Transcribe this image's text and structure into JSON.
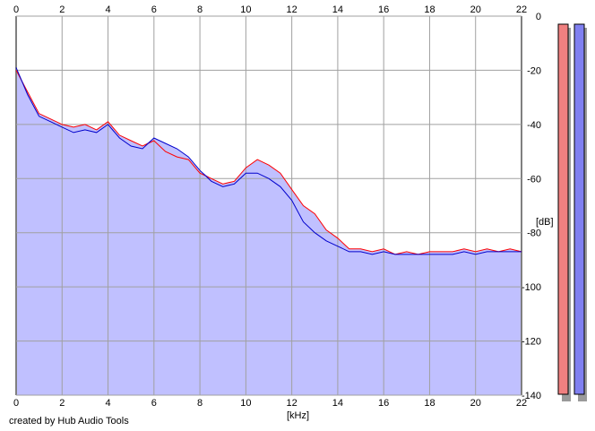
{
  "app": {
    "credit": "created by Hub Audio Tools"
  },
  "chart_data": {
    "type": "area",
    "xlabel": "[kHz]",
    "ylabel": "[dB]",
    "xlim": [
      0,
      22
    ],
    "ylim": [
      -140,
      0
    ],
    "grid": true,
    "x_ticks": [
      0,
      2,
      4,
      6,
      8,
      10,
      12,
      14,
      16,
      18,
      20,
      22
    ],
    "y_ticks": [
      0,
      -20,
      -40,
      -60,
      -80,
      -100,
      -120,
      -140
    ],
    "x": [
      0,
      0.5,
      1,
      1.5,
      2,
      2.5,
      3,
      3.5,
      4,
      4.5,
      5,
      5.5,
      6,
      6.5,
      7,
      7.5,
      8,
      8.5,
      9,
      9.5,
      10,
      10.5,
      11,
      11.5,
      12,
      12.5,
      13,
      13.5,
      14,
      14.5,
      15,
      15.5,
      16,
      16.5,
      17,
      17.5,
      18,
      18.5,
      19,
      19.5,
      20,
      20.5,
      21,
      21.5,
      22
    ],
    "series": [
      {
        "color": "#ff0000",
        "values": [
          -20,
          -28,
          -36,
          -38,
          -40,
          -41,
          -40,
          -42,
          -39,
          -44,
          -46,
          -48,
          -46,
          -50,
          -52,
          -53,
          -58,
          -60,
          -62,
          -61,
          -56,
          -53,
          -55,
          -58,
          -64,
          -70,
          -73,
          -79,
          -82,
          -86,
          -86,
          -87,
          -86,
          -88,
          -87,
          -88,
          -87,
          -87,
          -87,
          -86,
          -87,
          -86,
          -87,
          -86,
          -87
        ]
      },
      {
        "color": "#0000cc",
        "values": [
          -19,
          -29,
          -37,
          -39,
          -41,
          -43,
          -42,
          -43,
          -40,
          -45,
          -48,
          -49,
          -45,
          -47,
          -49,
          -52,
          -57,
          -61,
          -63,
          -62,
          -58,
          -58,
          -60,
          -63,
          -68,
          -76,
          -80,
          -83,
          -85,
          -87,
          -87,
          -88,
          -87,
          -88,
          -88,
          -88,
          -88,
          -88,
          -88,
          -87,
          -88,
          -87,
          -87,
          -87,
          -87
        ]
      }
    ],
    "fill_color": "#c0c0ff",
    "meter_colors": [
      "#f08080",
      "#8080f0"
    ]
  }
}
